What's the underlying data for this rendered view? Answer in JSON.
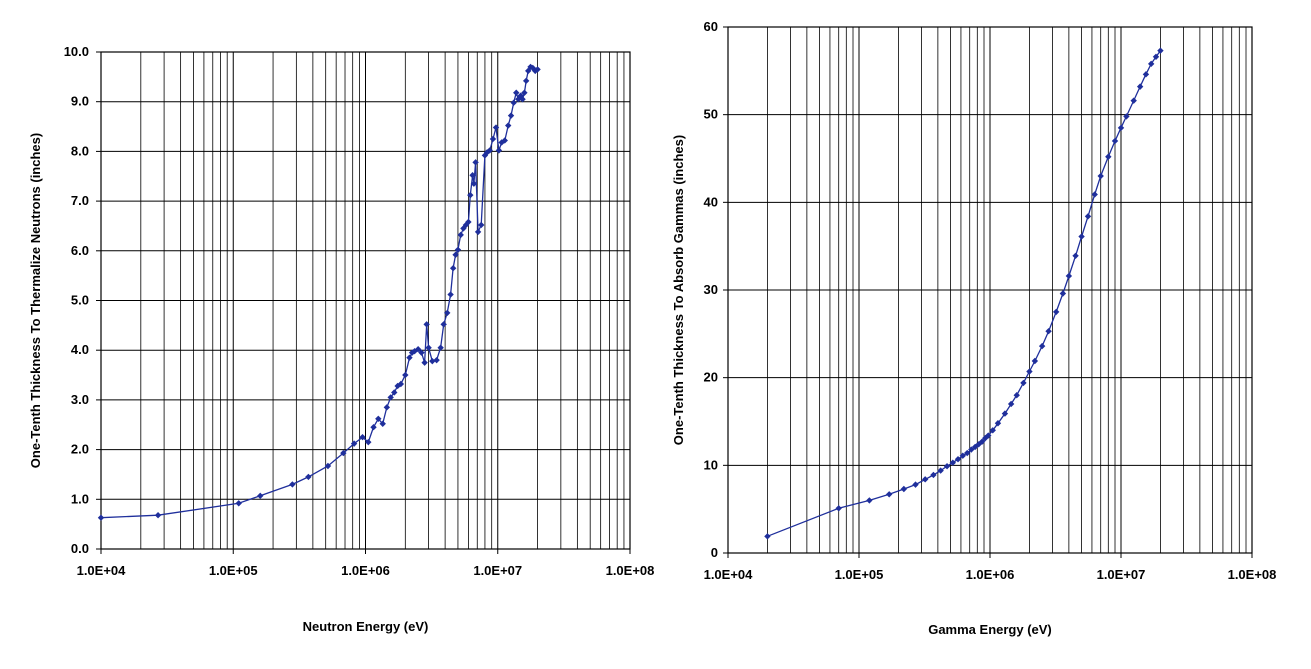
{
  "chart_data": [
    {
      "type": "line",
      "xlabel": "Neutron Energy (eV)",
      "ylabel": "One-Tenth Thickness To Thermalize Neutrons (inches)",
      "xscale": "log",
      "xlim": [
        10000,
        100000000
      ],
      "ylim": [
        0,
        10
      ],
      "x_ticks": [
        "1.0E+04",
        "1.0E+05",
        "1.0E+06",
        "1.0E+07",
        "1.0E+08"
      ],
      "y_ticks": [
        "0.0",
        "1.0",
        "2.0",
        "3.0",
        "4.0",
        "5.0",
        "6.0",
        "7.0",
        "8.0",
        "9.0",
        "10.0"
      ],
      "grid": true,
      "color": "#1f2f9c",
      "series": [
        {
          "x": [
            10000,
            27000,
            110000,
            160000,
            280000,
            370000,
            520000,
            680000,
            820000,
            950000,
            1050000,
            1150000,
            1250000,
            1350000,
            1450000,
            1550000,
            1650000,
            1750000,
            1850000,
            2000000,
            2150000,
            2250000,
            2350000,
            2500000,
            2650000,
            2800000,
            2900000,
            3000000,
            3200000,
            3450000,
            3700000,
            3900000,
            4150000,
            4400000,
            4600000,
            4800000,
            5000000,
            5250000,
            5500000,
            5750000,
            6000000,
            6200000,
            6450000,
            6600000,
            6800000,
            7100000,
            7500000,
            8000000,
            8300000,
            8700000,
            9200000,
            9700000,
            10200000,
            10700000,
            11300000,
            12000000,
            12600000,
            13200000,
            13800000,
            14300000,
            14900000,
            15400000,
            15900000,
            16400000,
            17000000,
            17700000,
            18400000,
            19200000,
            20000000
          ],
          "y": [
            0.63,
            0.68,
            0.92,
            1.07,
            1.3,
            1.45,
            1.67,
            1.93,
            2.12,
            2.25,
            2.15,
            2.45,
            2.62,
            2.52,
            2.85,
            3.05,
            3.15,
            3.28,
            3.32,
            3.5,
            3.85,
            3.95,
            3.98,
            4.02,
            3.95,
            3.75,
            4.52,
            4.05,
            3.78,
            3.8,
            4.05,
            4.52,
            4.75,
            5.12,
            5.65,
            5.92,
            6.02,
            6.32,
            6.45,
            6.52,
            6.58,
            7.12,
            7.52,
            7.35,
            7.78,
            6.38,
            6.52,
            7.92,
            7.98,
            8.02,
            8.25,
            8.48,
            8.02,
            8.18,
            8.22,
            8.52,
            8.72,
            8.98,
            9.18,
            9.05,
            9.12,
            9.05,
            9.18,
            9.42,
            9.62,
            9.7,
            9.68,
            9.62,
            9.65
          ]
        }
      ]
    },
    {
      "type": "line",
      "xlabel": "Gamma Energy (eV)",
      "ylabel": "One-Tenth Thickness To Absorb Gammas (inches)",
      "xscale": "log",
      "xlim": [
        10000,
        100000000
      ],
      "ylim": [
        0,
        60
      ],
      "x_ticks": [
        "1.0E+04",
        "1.0E+05",
        "1.0E+06",
        "1.0E+07",
        "1.0E+08"
      ],
      "y_ticks": [
        "0",
        "10",
        "20",
        "30",
        "40",
        "50",
        "60"
      ],
      "grid": true,
      "color": "#1f2f9c",
      "series": [
        {
          "x": [
            20000,
            70000,
            120000,
            170000,
            220000,
            270000,
            320000,
            370000,
            420000,
            470000,
            520000,
            570000,
            620000,
            670000,
            720000,
            770000,
            820000,
            870000,
            920000,
            970000,
            1050000,
            1150000,
            1300000,
            1450000,
            1600000,
            1800000,
            2000000,
            2200000,
            2500000,
            2800000,
            3200000,
            3600000,
            4000000,
            4500000,
            5000000,
            5600000,
            6300000,
            7000000,
            8000000,
            9000000,
            10000000,
            11000000,
            12500000,
            14000000,
            15500000,
            17000000,
            18500000,
            20000000
          ],
          "y": [
            1.9,
            5.1,
            6.0,
            6.7,
            7.3,
            7.8,
            8.4,
            8.9,
            9.4,
            9.9,
            10.3,
            10.7,
            11.1,
            11.4,
            11.8,
            12.1,
            12.4,
            12.7,
            13.1,
            13.4,
            14.0,
            14.8,
            15.9,
            17.0,
            18.0,
            19.4,
            20.7,
            21.9,
            23.6,
            25.3,
            27.5,
            29.6,
            31.6,
            33.9,
            36.1,
            38.4,
            40.9,
            43.0,
            45.2,
            47.0,
            48.5,
            49.8,
            51.6,
            53.2,
            54.6,
            55.8,
            56.6,
            57.3
          ]
        }
      ]
    }
  ]
}
